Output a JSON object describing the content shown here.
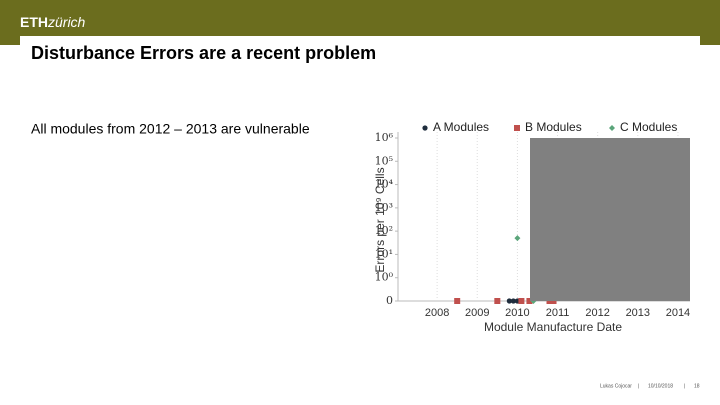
{
  "header": {
    "logo_bold": "ETH",
    "logo_light": "zürich"
  },
  "slide": {
    "title": "Disturbance Errors are a recent problem",
    "body": "All modules from 2012 – 2013 are vulnerable"
  },
  "chart_data": {
    "type": "scatter",
    "xlabel": "Module Manufacture Date",
    "ylabel": "Errors per 10⁹ Cells",
    "yscale": "log",
    "grid": true,
    "xlim": [
      2007.2,
      2014.3
    ],
    "xticks": [
      2008,
      2009,
      2010,
      2011,
      2012,
      2013,
      2014
    ],
    "ylim": [
      0,
      1000000
    ],
    "yticks": [
      0,
      {
        "value": 1,
        "label": "10⁰"
      },
      {
        "value": 10,
        "label": "10¹"
      },
      {
        "value": 100,
        "label": "10²"
      },
      {
        "value": 1000,
        "label": "10³"
      },
      {
        "value": 10000,
        "label": "10⁴"
      },
      {
        "value": 100000,
        "label": "10⁵"
      },
      {
        "value": 1000000,
        "label": "10⁶"
      }
    ],
    "series": [
      {
        "name": "A Modules",
        "color": "#1f2d3d",
        "marker": "circle",
        "x": [
          2009.8,
          2009.9,
          2010.0
        ],
        "values": [
          0,
          0,
          0
        ]
      },
      {
        "name": "B Modules",
        "color": "#c0504d",
        "marker": "square",
        "x": [
          2008.5,
          2009.5,
          2010.1,
          2010.3,
          2010.8,
          2010.9
        ],
        "values": [
          0,
          0,
          0,
          0,
          0,
          0
        ]
      },
      {
        "name": "C Modules",
        "color": "#5aa57a",
        "marker": "diamond",
        "x": [
          2010.0,
          2010.4
        ],
        "values": [
          50,
          0
        ]
      }
    ]
  },
  "footer": {
    "author": "Lukas Cojocar",
    "date": "10/10/2018",
    "page": "18"
  }
}
